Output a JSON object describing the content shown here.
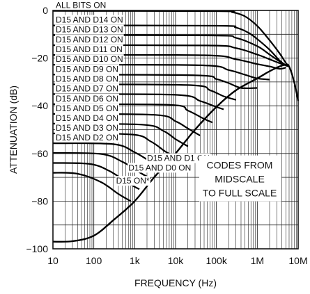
{
  "chart_data": {
    "type": "line",
    "xlabel": "FREQUENCY (Hz)",
    "ylabel": "ATTENUATION (dB)",
    "xscale": "log",
    "xlim": [
      10,
      10000000
    ],
    "ylim": [
      -100,
      0
    ],
    "x_ticks": [
      {
        "value": 10,
        "label": "10"
      },
      {
        "value": 100,
        "label": "100"
      },
      {
        "value": 1000,
        "label": "1k"
      },
      {
        "value": 10000,
        "label": "10k"
      },
      {
        "value": 100000,
        "label": "100k"
      },
      {
        "value": 1000000,
        "label": "1M"
      },
      {
        "value": 10000000,
        "label": "10M"
      }
    ],
    "y_ticks": [
      {
        "value": 0,
        "label": "0"
      },
      {
        "value": -20,
        "label": "−20"
      },
      {
        "value": -40,
        "label": "−40"
      },
      {
        "value": -60,
        "label": "−60"
      },
      {
        "value": -80,
        "label": "−80"
      },
      {
        "value": -100,
        "label": "−100"
      }
    ],
    "grid": true,
    "annotation": [
      "CODES FROM",
      "MIDSCALE",
      "TO FULL SCALE"
    ],
    "series": [
      {
        "name": "ALL BITS ON",
        "points": [
          [
            10,
            -0.2
          ],
          [
            100000,
            -0.3
          ],
          [
            250000,
            -0.8
          ],
          [
            500000,
            -2.5
          ],
          [
            1000000,
            -6.5
          ],
          [
            2000000,
            -12.5
          ],
          [
            3500000,
            -18
          ],
          [
            5000000,
            -22
          ],
          [
            6000000,
            -23.5
          ]
        ]
      },
      {
        "name": "D15 AND D14 ON",
        "points": [
          [
            10,
            -6.3
          ],
          [
            100000,
            -6.4
          ],
          [
            300000,
            -7.2
          ],
          [
            600000,
            -9.3
          ],
          [
            1000000,
            -12
          ],
          [
            2000000,
            -16.5
          ],
          [
            3500000,
            -21
          ],
          [
            5000000,
            -23
          ],
          [
            6000000,
            -23.5
          ]
        ]
      },
      {
        "name": "D15 AND D13 ON",
        "points": [
          [
            10,
            -10.4
          ],
          [
            80000,
            -10.5
          ],
          [
            300000,
            -11.5
          ],
          [
            1000000,
            -15
          ],
          [
            2000000,
            -18.5
          ],
          [
            4000000,
            -22
          ],
          [
            6000000,
            -23.5
          ]
        ]
      },
      {
        "name": "D15 AND D12 ON",
        "points": [
          [
            10,
            -14.6
          ],
          [
            60000,
            -14.7
          ],
          [
            300000,
            -15.8
          ],
          [
            1000000,
            -18.5
          ],
          [
            2000000,
            -20.5
          ],
          [
            4000000,
            -22.5
          ],
          [
            6000000,
            -23.5
          ]
        ]
      },
      {
        "name": "D15 AND D11 ON",
        "points": [
          [
            10,
            -18.7
          ],
          [
            50000,
            -18.8
          ],
          [
            300000,
            -20.5
          ],
          [
            1000000,
            -22.5
          ],
          [
            2000000,
            -23.5
          ],
          [
            3500000,
            -24.5
          ],
          [
            5000000,
            -24
          ]
        ]
      },
      {
        "name": "D15 AND D10 ON",
        "points": [
          [
            10,
            -22.8
          ],
          [
            40000,
            -23
          ],
          [
            200000,
            -25
          ],
          [
            500000,
            -27
          ],
          [
            1000000,
            -28.5
          ],
          [
            2000000,
            -29
          ]
        ]
      },
      {
        "name": "D15 AND D9 ON",
        "points": [
          [
            10,
            -26.9
          ],
          [
            30000,
            -27.2
          ],
          [
            100000,
            -28.8
          ],
          [
            200000,
            -30.5
          ],
          [
            400000,
            -32.5
          ],
          [
            1000000,
            -32.5
          ]
        ]
      },
      {
        "name": "D15 AND D8 ON",
        "points": [
          [
            10,
            -31
          ],
          [
            20000,
            -31.3
          ],
          [
            70000,
            -33.5
          ],
          [
            150000,
            -36
          ],
          [
            300000,
            -37.5
          ]
        ]
      },
      {
        "name": "D15 AND D7 ON",
        "points": [
          [
            10,
            -35.1
          ],
          [
            10000,
            -35.4
          ],
          [
            40000,
            -38
          ],
          [
            100000,
            -40.5
          ],
          [
            150000,
            -41.5
          ]
        ]
      },
      {
        "name": "D15 AND D6 ON",
        "points": [
          [
            10,
            -39.3
          ],
          [
            7000,
            -39.6
          ],
          [
            20000,
            -42
          ],
          [
            50000,
            -45.5
          ],
          [
            80000,
            -47
          ]
        ]
      },
      {
        "name": "D15 AND D5 ON",
        "points": [
          [
            10,
            -43.4
          ],
          [
            3000,
            -43.8
          ],
          [
            10000,
            -46.5
          ],
          [
            20000,
            -49.5
          ],
          [
            40000,
            -52.5
          ]
        ]
      },
      {
        "name": "D15 AND D4 ON",
        "points": [
          [
            10,
            -47.5
          ],
          [
            1500,
            -47.9
          ],
          [
            5000,
            -50.5
          ],
          [
            10000,
            -54
          ],
          [
            20000,
            -57
          ]
        ]
      },
      {
        "name": "D15 AND D3 ON",
        "points": [
          [
            10,
            -51.6
          ],
          [
            800,
            -52
          ],
          [
            2500,
            -55
          ],
          [
            6000,
            -59.5
          ],
          [
            10000,
            -61
          ]
        ]
      },
      {
        "name": "D15 AND D2 ON",
        "points": [
          [
            10,
            -55.7
          ],
          [
            300,
            -56.1
          ],
          [
            1000,
            -59.5
          ],
          [
            2500,
            -63.5
          ],
          [
            5000,
            -66
          ]
        ]
      },
      {
        "name": "D15 AND D1 ON",
        "points": [
          [
            10,
            -59.8
          ],
          [
            150,
            -60.2
          ],
          [
            500,
            -63.5
          ],
          [
            1500,
            -68.5
          ],
          [
            2500,
            -70.5
          ]
        ]
      },
      {
        "name": "D15 AND D0 ON",
        "points": [
          [
            10,
            -64
          ],
          [
            80,
            -64.4
          ],
          [
            250,
            -67.5
          ],
          [
            700,
            -72.5
          ],
          [
            1300,
            -75
          ]
        ]
      },
      {
        "name": "D15 ON*",
        "points": [
          [
            10,
            -68.1
          ],
          [
            40,
            -68.5
          ],
          [
            150,
            -72
          ],
          [
            400,
            -77
          ],
          [
            800,
            -80
          ]
        ]
      }
    ],
    "envelope": {
      "points": [
        [
          10,
          -97
        ],
        [
          30,
          -96.8
        ],
        [
          100,
          -94.5
        ],
        [
          300,
          -88
        ],
        [
          1000,
          -80
        ],
        [
          3000,
          -70
        ],
        [
          10000,
          -60
        ],
        [
          30000,
          -50
        ],
        [
          100000,
          -40.5
        ],
        [
          300000,
          -33.5
        ],
        [
          1000000,
          -28.5
        ],
        [
          2000000,
          -25.5
        ],
        [
          3500000,
          -23.5
        ],
        [
          5000000,
          -22.8
        ],
        [
          6000000,
          -23.5
        ],
        [
          8000000,
          -30
        ],
        [
          10000000,
          -38
        ]
      ]
    }
  }
}
